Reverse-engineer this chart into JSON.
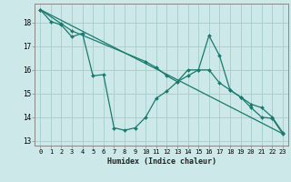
{
  "xlabel": "Humidex (Indice chaleur)",
  "bg_color": "#cce8e8",
  "grid_color": "#aad0d0",
  "line_color": "#1a7a6e",
  "xlim": [
    -0.5,
    23.5
  ],
  "ylim": [
    12.8,
    18.8
  ],
  "yticks": [
    13,
    14,
    15,
    16,
    17,
    18
  ],
  "xticks": [
    0,
    1,
    2,
    3,
    4,
    5,
    6,
    7,
    8,
    9,
    10,
    11,
    12,
    13,
    14,
    15,
    16,
    17,
    18,
    19,
    20,
    21,
    22,
    23
  ],
  "line1_x": [
    0,
    1,
    2,
    3,
    4,
    5,
    6,
    7,
    8,
    9,
    10,
    11,
    12,
    13,
    14,
    15,
    16,
    17,
    18,
    19,
    20,
    21,
    22,
    23
  ],
  "line1_y": [
    18.55,
    18.05,
    17.9,
    17.4,
    17.55,
    15.75,
    15.8,
    13.55,
    13.45,
    13.55,
    14.0,
    14.8,
    15.1,
    15.5,
    16.0,
    16.0,
    17.45,
    16.6,
    15.15,
    14.85,
    14.4,
    14.0,
    13.95,
    13.3
  ],
  "line2_x": [
    0,
    23
  ],
  "line2_y": [
    18.55,
    13.3
  ],
  "line3_x": [
    0,
    2,
    3,
    10,
    11,
    12,
    13,
    14,
    15,
    16,
    17,
    18,
    19,
    20,
    21,
    22,
    23
  ],
  "line3_y": [
    18.55,
    17.95,
    17.65,
    16.35,
    16.1,
    15.75,
    15.5,
    15.75,
    16.0,
    16.0,
    15.45,
    15.15,
    14.85,
    14.55,
    14.4,
    14.0,
    13.35
  ]
}
